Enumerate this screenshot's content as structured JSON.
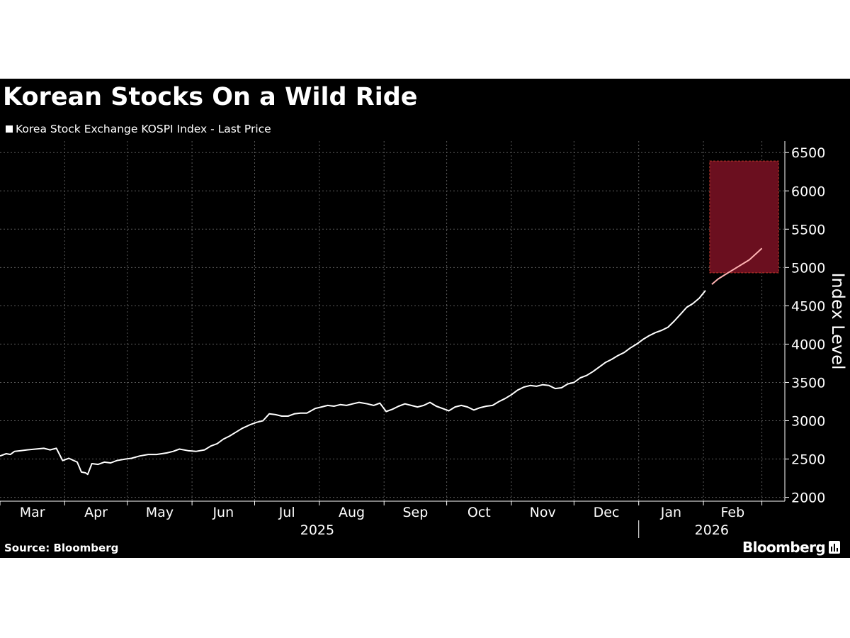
{
  "title": "Korean Stocks On a Wild Ride",
  "source": "Source: Bloomberg",
  "brand": "Bloomberg",
  "brand_icon": "chart-icon",
  "colors": {
    "background": "#000000",
    "line": "#ffffff",
    "highlight_fill": "#6b0f1f",
    "highlight_border": "#c0392b",
    "highlight_line": "#ffb3b3"
  },
  "chart_data": {
    "type": "line",
    "title": "Korean Stocks On a Wild Ride",
    "ylabel": "Index Level",
    "xlabel": "",
    "ylim": [
      1950,
      6650
    ],
    "yticks": [
      2000,
      2500,
      3000,
      3500,
      4000,
      4500,
      5000,
      5500,
      6000,
      6500
    ],
    "y_axis_side": "right",
    "grid": true,
    "legend_position": "top-left",
    "x_range": [
      "2025-03-01",
      "2026-03-12"
    ],
    "month_ticks": [
      {
        "label": "Mar",
        "date": "2025-03-01"
      },
      {
        "label": "Apr",
        "date": "2025-04-01"
      },
      {
        "label": "May",
        "date": "2025-05-01"
      },
      {
        "label": "Jun",
        "date": "2025-06-01"
      },
      {
        "label": "Jul",
        "date": "2025-07-01"
      },
      {
        "label": "Aug",
        "date": "2025-08-01"
      },
      {
        "label": "Sep",
        "date": "2025-09-01"
      },
      {
        "label": "Oct",
        "date": "2025-10-01"
      },
      {
        "label": "Nov",
        "date": "2025-11-01"
      },
      {
        "label": "Dec",
        "date": "2025-12-01"
      },
      {
        "label": "Jan",
        "date": "2026-01-01"
      },
      {
        "label": "Feb",
        "date": "2026-02-01"
      },
      {
        "label": "",
        "date": "2026-03-01"
      }
    ],
    "year_labels": [
      {
        "label": "2025",
        "date": "2025-07-31"
      },
      {
        "label": "2026",
        "date": "2026-02-05"
      }
    ],
    "year_divider": "2026-01-01",
    "series": [
      {
        "name": "Korea Stock Exchange KOSPI Index - Last Price",
        "points": [
          [
            "2025-03-01",
            2540
          ],
          [
            "2025-03-04",
            2570
          ],
          [
            "2025-03-06",
            2560
          ],
          [
            "2025-03-08",
            2600
          ],
          [
            "2025-03-11",
            2610
          ],
          [
            "2025-03-14",
            2620
          ],
          [
            "2025-03-18",
            2630
          ],
          [
            "2025-03-22",
            2640
          ],
          [
            "2025-03-25",
            2620
          ],
          [
            "2025-03-28",
            2640
          ],
          [
            "2025-03-31",
            2480
          ],
          [
            "2025-04-03",
            2510
          ],
          [
            "2025-04-07",
            2460
          ],
          [
            "2025-04-09",
            2330
          ],
          [
            "2025-04-11",
            2320
          ],
          [
            "2025-04-12",
            2300
          ],
          [
            "2025-04-14",
            2440
          ],
          [
            "2025-04-17",
            2430
          ],
          [
            "2025-04-20",
            2460
          ],
          [
            "2025-04-23",
            2450
          ],
          [
            "2025-04-26",
            2480
          ],
          [
            "2025-04-30",
            2500
          ],
          [
            "2025-05-03",
            2510
          ],
          [
            "2025-05-07",
            2540
          ],
          [
            "2025-05-11",
            2560
          ],
          [
            "2025-05-15",
            2560
          ],
          [
            "2025-05-20",
            2580
          ],
          [
            "2025-05-23",
            2600
          ],
          [
            "2025-05-26",
            2630
          ],
          [
            "2025-05-30",
            2610
          ],
          [
            "2025-06-03",
            2600
          ],
          [
            "2025-06-07",
            2620
          ],
          [
            "2025-06-10",
            2670
          ],
          [
            "2025-06-13",
            2700
          ],
          [
            "2025-06-16",
            2760
          ],
          [
            "2025-06-19",
            2800
          ],
          [
            "2025-06-22",
            2850
          ],
          [
            "2025-06-25",
            2900
          ],
          [
            "2025-06-29",
            2950
          ],
          [
            "2025-07-02",
            2980
          ],
          [
            "2025-07-05",
            3000
          ],
          [
            "2025-07-08",
            3090
          ],
          [
            "2025-07-11",
            3080
          ],
          [
            "2025-07-14",
            3060
          ],
          [
            "2025-07-17",
            3060
          ],
          [
            "2025-07-20",
            3090
          ],
          [
            "2025-07-23",
            3100
          ],
          [
            "2025-07-26",
            3100
          ],
          [
            "2025-07-30",
            3160
          ],
          [
            "2025-08-02",
            3180
          ],
          [
            "2025-08-05",
            3200
          ],
          [
            "2025-08-08",
            3190
          ],
          [
            "2025-08-11",
            3210
          ],
          [
            "2025-08-14",
            3200
          ],
          [
            "2025-08-17",
            3220
          ],
          [
            "2025-08-20",
            3240
          ],
          [
            "2025-08-24",
            3220
          ],
          [
            "2025-08-27",
            3200
          ],
          [
            "2025-08-30",
            3230
          ],
          [
            "2025-09-02",
            3120
          ],
          [
            "2025-09-05",
            3150
          ],
          [
            "2025-09-08",
            3190
          ],
          [
            "2025-09-11",
            3220
          ],
          [
            "2025-09-14",
            3200
          ],
          [
            "2025-09-17",
            3180
          ],
          [
            "2025-09-20",
            3200
          ],
          [
            "2025-09-23",
            3240
          ],
          [
            "2025-09-26",
            3190
          ],
          [
            "2025-09-29",
            3160
          ],
          [
            "2025-10-02",
            3130
          ],
          [
            "2025-10-05",
            3180
          ],
          [
            "2025-10-08",
            3200
          ],
          [
            "2025-10-11",
            3180
          ],
          [
            "2025-10-14",
            3140
          ],
          [
            "2025-10-17",
            3170
          ],
          [
            "2025-10-20",
            3190
          ],
          [
            "2025-10-23",
            3200
          ],
          [
            "2025-10-26",
            3250
          ],
          [
            "2025-10-29",
            3290
          ],
          [
            "2025-11-01",
            3340
          ],
          [
            "2025-11-04",
            3400
          ],
          [
            "2025-11-07",
            3440
          ],
          [
            "2025-11-10",
            3460
          ],
          [
            "2025-11-13",
            3450
          ],
          [
            "2025-11-16",
            3470
          ],
          [
            "2025-11-19",
            3460
          ],
          [
            "2025-11-22",
            3420
          ],
          [
            "2025-11-25",
            3430
          ],
          [
            "2025-11-28",
            3480
          ],
          [
            "2025-12-01",
            3500
          ],
          [
            "2025-12-04",
            3560
          ],
          [
            "2025-12-07",
            3590
          ],
          [
            "2025-12-10",
            3640
          ],
          [
            "2025-12-13",
            3700
          ],
          [
            "2025-12-16",
            3760
          ],
          [
            "2025-12-19",
            3800
          ],
          [
            "2025-12-22",
            3850
          ],
          [
            "2025-12-25",
            3890
          ],
          [
            "2025-12-28",
            3950
          ],
          [
            "2025-12-31",
            4000
          ],
          [
            "2026-01-03",
            4060
          ],
          [
            "2026-01-06",
            4110
          ],
          [
            "2026-01-09",
            4150
          ],
          [
            "2026-01-12",
            4180
          ],
          [
            "2026-01-15",
            4220
          ],
          [
            "2026-01-18",
            4300
          ],
          [
            "2026-01-21",
            4390
          ],
          [
            "2026-01-24",
            4480
          ],
          [
            "2026-01-27",
            4530
          ],
          [
            "2026-01-30",
            4600
          ],
          [
            "2026-02-02",
            4700
          ],
          [
            "2026-02-05",
            4780
          ],
          [
            "2026-02-08",
            4850
          ],
          [
            "2026-02-11",
            4900
          ],
          [
            "2026-02-14",
            4950
          ],
          [
            "2026-02-17",
            5000
          ],
          [
            "2026-02-20",
            5050
          ],
          [
            "2026-02-23",
            5100
          ],
          [
            "2026-02-25",
            5150
          ],
          [
            "2026-02-27",
            5200
          ],
          [
            "2026-03-01",
            5250
          ]
        ]
      }
    ],
    "highlight_region": {
      "x": [
        "2026-02-04",
        "2026-03-09"
      ],
      "y": [
        4930,
        6390
      ]
    }
  }
}
